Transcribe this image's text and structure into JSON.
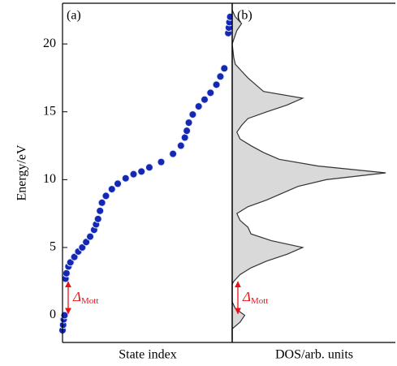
{
  "chart_data": [
    {
      "type": "scatter",
      "panel_label": "(a)",
      "y_label": "Energy/eV",
      "x_label": "State index",
      "color": "#1428b4",
      "x": [
        0,
        0.3,
        0.6,
        1,
        1.5,
        2,
        3,
        4,
        6,
        8,
        10,
        12,
        14,
        16,
        17,
        18,
        19,
        20,
        22,
        25,
        28,
        32,
        36,
        40,
        44,
        50,
        56,
        60,
        62,
        63,
        64,
        66,
        69,
        72,
        75,
        78,
        80,
        82,
        84,
        84.3,
        84.6,
        85
      ],
      "y": [
        -1.1,
        -0.7,
        -0.3,
        0,
        2.7,
        3.1,
        3.6,
        3.9,
        4.3,
        4.7,
        5.0,
        5.4,
        5.8,
        6.3,
        6.7,
        7.1,
        7.7,
        8.3,
        8.8,
        9.3,
        9.7,
        10.1,
        10.4,
        10.6,
        10.9,
        11.3,
        11.9,
        12.5,
        13.1,
        13.6,
        14.2,
        14.8,
        15.4,
        15.9,
        16.4,
        17.0,
        17.6,
        18.2,
        20.8,
        21.2,
        21.6,
        22.0
      ],
      "xlim": [
        0,
        86
      ],
      "ylim": [
        -2,
        23
      ],
      "yticks": [
        0,
        5,
        10,
        15,
        20
      ],
      "annotation": {
        "symbol": "Δ",
        "subscript": "Mott",
        "gap": [
          0,
          2.6
        ]
      }
    },
    {
      "type": "area",
      "panel_label": "(b)",
      "x_label": "DOS/arb. units",
      "color": "#d9d9d9",
      "energy": [
        -1.8,
        -1,
        -0.5,
        0,
        0.5,
        1,
        2.3,
        2.5,
        3,
        3.5,
        4,
        4.5,
        5,
        5.5,
        6,
        6.5,
        7,
        7.5,
        8,
        8.5,
        9,
        9.5,
        10,
        10.5,
        11,
        11.5,
        12,
        12.5,
        13,
        13.5,
        14,
        14.5,
        15,
        15.5,
        16,
        16.5,
        17,
        17.5,
        18,
        18.5,
        19,
        20,
        21,
        21.5,
        22,
        22.5
      ],
      "dos": [
        0,
        0,
        0.05,
        0.08,
        0.02,
        0,
        0,
        0.01,
        0.05,
        0.12,
        0.22,
        0.35,
        0.45,
        0.25,
        0.12,
        0.1,
        0.05,
        0.03,
        0.1,
        0.22,
        0.32,
        0.42,
        0.6,
        0.98,
        0.55,
        0.3,
        0.2,
        0.12,
        0.05,
        0.03,
        0.06,
        0.1,
        0.22,
        0.35,
        0.45,
        0.2,
        0.15,
        0.1,
        0.06,
        0.02,
        0.01,
        0,
        0.03,
        0.06,
        0.02,
        0
      ],
      "xlim": [
        0,
        1
      ],
      "ylim": [
        -2,
        23
      ],
      "annotation": {
        "symbol": "Δ",
        "subscript": "Mott",
        "gap": [
          0,
          2.6
        ]
      }
    }
  ]
}
